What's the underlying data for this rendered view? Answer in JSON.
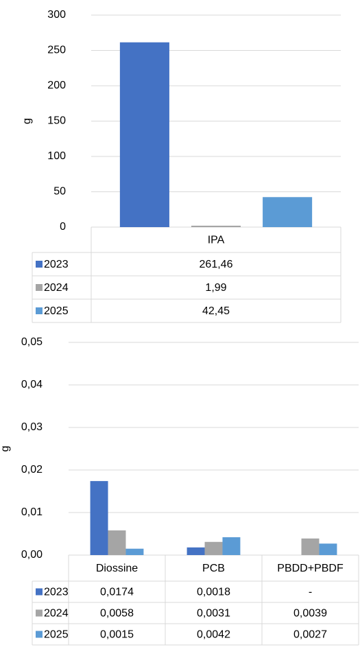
{
  "chart_data": [
    {
      "type": "bar",
      "y_label": "g",
      "categories": [
        "IPA"
      ],
      "series": [
        {
          "name": "2023",
          "color": "#4472c4",
          "values": [
            261.46
          ],
          "value_labels": [
            "261,46"
          ]
        },
        {
          "name": "2024",
          "color": "#a5a5a5",
          "values": [
            1.99
          ],
          "value_labels": [
            "1,99"
          ]
        },
        {
          "name": "2025",
          "color": "#5b9bd5",
          "values": [
            42.45
          ],
          "value_labels": [
            "42,45"
          ]
        }
      ],
      "ylim": [
        0,
        300
      ],
      "yticks": [
        0,
        50,
        100,
        150,
        200,
        250,
        300
      ],
      "grid": true
    },
    {
      "type": "bar",
      "y_label": "g",
      "categories": [
        "Diossine",
        "PCB",
        "PBDD+PBDF"
      ],
      "series": [
        {
          "name": "2023",
          "color": "#4472c4",
          "values": [
            0.0174,
            0.0018,
            null
          ],
          "value_labels": [
            "0,0174",
            "0,0018",
            "-"
          ]
        },
        {
          "name": "2024",
          "color": "#a5a5a5",
          "values": [
            0.0058,
            0.0031,
            0.0039
          ],
          "value_labels": [
            "0,0058",
            "0,0031",
            "0,0039"
          ]
        },
        {
          "name": "2025",
          "color": "#5b9bd5",
          "values": [
            0.0015,
            0.0042,
            0.0027
          ],
          "value_labels": [
            "0,0015",
            "0,0042",
            "0,0027"
          ]
        }
      ],
      "ylim": [
        0,
        0.05
      ],
      "yticks": [
        {
          "value": 0,
          "label": "0,00"
        },
        {
          "value": 0.01,
          "label": "0,01"
        },
        {
          "value": 0.02,
          "label": "0,02"
        },
        {
          "value": 0.03,
          "label": "0,03"
        },
        {
          "value": 0.04,
          "label": "0,04"
        },
        {
          "value": 0.05,
          "label": "0,05"
        }
      ],
      "grid": true
    }
  ]
}
